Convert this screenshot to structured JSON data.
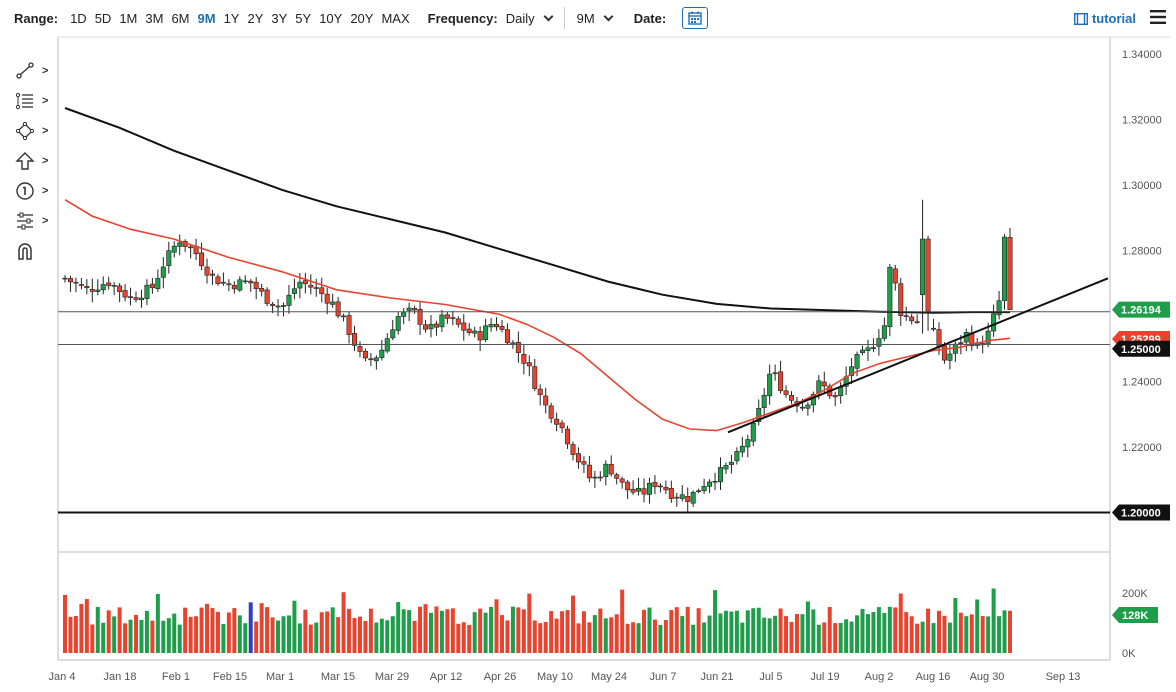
{
  "toolbar": {
    "range_label": "Range:",
    "ranges": [
      "1D",
      "5D",
      "1M",
      "3M",
      "6M",
      "9M",
      "1Y",
      "2Y",
      "3Y",
      "5Y",
      "10Y",
      "20Y",
      "MAX"
    ],
    "active_range": "9M",
    "frequency_label": "Frequency:",
    "frequency_value": "Daily",
    "period_value": "9M",
    "date_label": "Date:",
    "tutorial_label": "tutorial"
  },
  "side_tools": [
    "trend-line-icon",
    "fibonacci-icon",
    "shapes-icon",
    "arrow-up-icon",
    "annotation-icon",
    "settings-sliders-icon",
    "magnet-icon"
  ],
  "colors": {
    "up": "#1e9e4a",
    "down": "#e8432e",
    "ma_short": "#e8432e",
    "ma_long": "#111111",
    "accent": "#1f6fb5",
    "volume_highlight": "#2f3fbf"
  },
  "chart_data": {
    "type": "candlestick",
    "grid": false,
    "y_axis": {
      "position": "right",
      "ticks": [
        "1.34000",
        "1.32000",
        "1.30000",
        "1.28000",
        "1.24000",
        "1.22000"
      ],
      "range": [
        1.19,
        1.345
      ]
    },
    "x_axis": {
      "ticks": [
        "Jan 4",
        "Jan 18",
        "Feb 1",
        "Feb 15",
        "Mar 1",
        "Mar 15",
        "Mar 29",
        "Apr 12",
        "Apr 26",
        "May 10",
        "May 24",
        "Jun 7",
        "Jun 21",
        "Jul 5",
        "Jul 19",
        "Aug 2",
        "Aug 16",
        "Aug 30",
        "Sep 13"
      ]
    },
    "price_labels": [
      {
        "text": "1.26194",
        "value": 1.26194,
        "style": "up"
      },
      {
        "text": "1.25299",
        "value": 1.25299,
        "style": "ma"
      },
      {
        "text": "1.25000",
        "value": 1.25,
        "style": "dark"
      },
      {
        "text": "1.20000",
        "value": 1.2,
        "style": "dark"
      }
    ],
    "horizontal_lines": [
      1.2613,
      1.2513,
      1.2
    ],
    "trend_line": {
      "from": [
        "Jun 21",
        1.2245
      ],
      "to": [
        "Sep 20",
        1.2715
      ]
    },
    "series": [
      {
        "kind": "moving_average",
        "points": [
          [
            0,
            1.2955
          ],
          [
            5,
            1.2905
          ],
          [
            12,
            1.2865
          ],
          [
            20,
            1.2835
          ],
          [
            30,
            1.278
          ],
          [
            40,
            1.2735
          ],
          [
            50,
            1.268
          ],
          [
            60,
            1.2655
          ],
          [
            70,
            1.2635
          ],
          [
            80,
            1.2605
          ],
          [
            85,
            1.2575
          ],
          [
            90,
            1.2535
          ],
          [
            95,
            1.2485
          ],
          [
            100,
            1.2415
          ],
          [
            105,
            1.2345
          ],
          [
            110,
            1.2285
          ],
          [
            115,
            1.2255
          ],
          [
            120,
            1.225
          ],
          [
            125,
            1.2275
          ],
          [
            130,
            1.2305
          ],
          [
            135,
            1.2335
          ],
          [
            140,
            1.2375
          ],
          [
            145,
            1.2425
          ],
          [
            150,
            1.2455
          ],
          [
            155,
            1.2475
          ],
          [
            160,
            1.2495
          ],
          [
            165,
            1.2505
          ],
          [
            170,
            1.2525
          ],
          [
            174,
            1.2532
          ]
        ]
      },
      {
        "kind": "moving_average",
        "points": [
          [
            0,
            1.3235
          ],
          [
            10,
            1.3175
          ],
          [
            20,
            1.3105
          ],
          [
            30,
            1.3045
          ],
          [
            40,
            1.2985
          ],
          [
            50,
            1.2935
          ],
          [
            60,
            1.2895
          ],
          [
            70,
            1.2855
          ],
          [
            80,
            1.2805
          ],
          [
            90,
            1.2755
          ],
          [
            100,
            1.2705
          ],
          [
            110,
            1.2665
          ],
          [
            120,
            1.2637
          ],
          [
            130,
            1.2623
          ],
          [
            140,
            1.2618
          ],
          [
            150,
            1.2613
          ],
          [
            160,
            1.261
          ],
          [
            167,
            1.2612
          ],
          [
            174,
            1.2612
          ]
        ]
      }
    ],
    "volume_axis": {
      "ticks": [
        "200K",
        "0K"
      ],
      "last": "128K"
    },
    "volume_highlight_index": 34
  }
}
